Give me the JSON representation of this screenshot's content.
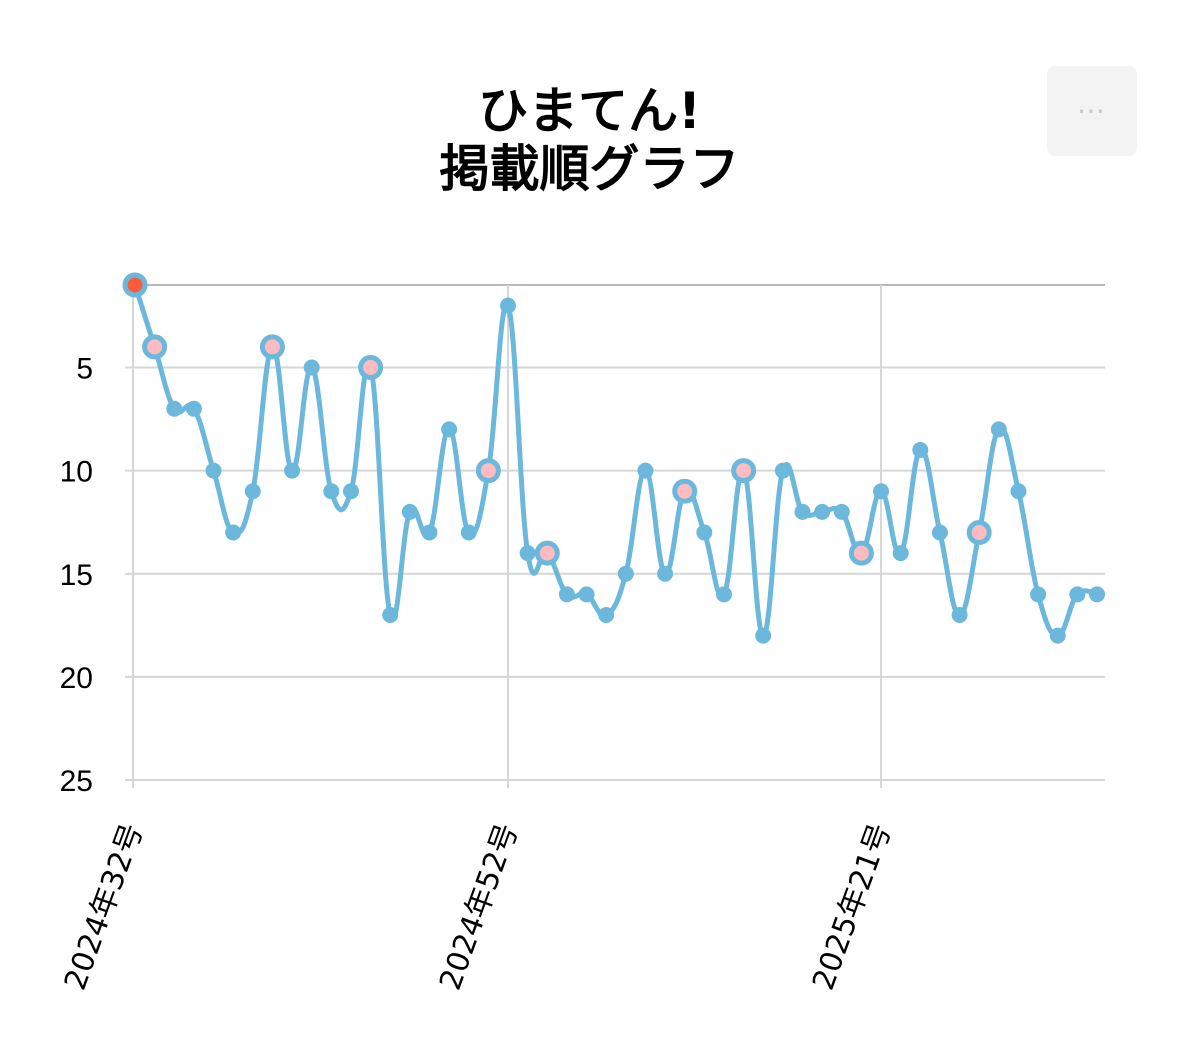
{
  "title_line1": "ひまてん!",
  "title_line2": "掲載順グラフ",
  "menu_label": "⋯",
  "menu_icon": "ellipsis-icon",
  "colors": {
    "line": "#6cb8dc",
    "marker": "#6cb8dc",
    "highlight_fill": "#ffbcc0",
    "latest_fill": "#ff5a3c",
    "grid": "#d6d6d6",
    "axis": "#b8b8b8"
  },
  "chart_data": {
    "type": "line",
    "y_reversed": true,
    "ylim": [
      1,
      25
    ],
    "y_ticks": [
      5,
      10,
      15,
      20,
      25
    ],
    "x_ticks": [
      {
        "index": 0,
        "label": "2024年32号"
      },
      {
        "index": 19,
        "label": "2024年52号"
      },
      {
        "index": 38,
        "label": "2025年21号"
      }
    ],
    "grid": true,
    "series": [
      {
        "values": [
          1,
          4,
          7,
          7,
          10,
          13,
          11,
          4,
          10,
          5,
          11,
          11,
          5,
          17,
          12,
          13,
          8,
          13,
          10,
          2,
          14,
          14,
          16,
          16,
          17,
          15,
          10,
          15,
          11,
          13,
          16,
          10,
          18,
          10,
          12,
          12,
          12,
          14,
          11,
          14,
          9,
          13,
          17,
          13,
          8,
          11,
          16,
          18,
          16,
          16
        ],
        "highlight_indices": [
          1,
          7,
          12,
          18,
          21,
          28,
          31,
          37,
          43
        ],
        "latest_index": 0
      }
    ]
  }
}
